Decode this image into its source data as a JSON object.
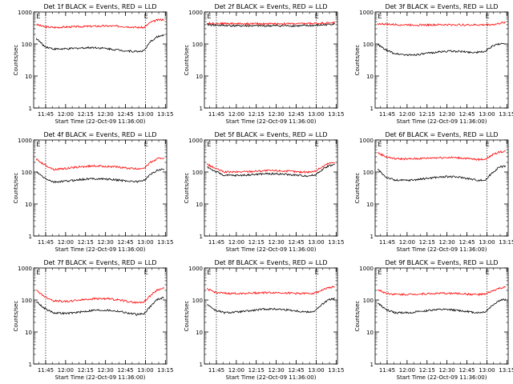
{
  "chart_data": [
    {
      "type": "line",
      "title": "Det 1f BLACK = Events, RED = LLD",
      "ylabel": "Counts/sec",
      "xlabel": "Start Time (22-Oct-09 11:36:00)",
      "x_ticks": [
        "11:45",
        "12:00",
        "12:15",
        "12:30",
        "12:45",
        "13:00",
        "13:15"
      ],
      "x_range_minutes": [
        0,
        100
      ],
      "ylim": [
        1,
        1000
      ],
      "y_scale": "log",
      "y_ticks": [
        "1",
        "10",
        "100",
        "1000"
      ],
      "markers": [
        {
          "label": "E",
          "minute": 2
        },
        {
          "label": "E",
          "minute": 83
        }
      ],
      "dotted_lines_minutes": [
        9,
        84
      ],
      "series": [
        {
          "color": "#ff0000",
          "x": [
            2,
            8,
            15,
            25,
            35,
            45,
            55,
            65,
            72,
            78,
            83,
            88,
            93,
            98
          ],
          "values": [
            410,
            345,
            330,
            340,
            350,
            360,
            365,
            360,
            345,
            330,
            330,
            480,
            560,
            590
          ]
        },
        {
          "color": "#000000",
          "x": [
            2,
            8,
            15,
            25,
            35,
            45,
            55,
            65,
            72,
            78,
            83,
            88,
            93,
            98
          ],
          "values": [
            150,
            85,
            70,
            70,
            75,
            78,
            72,
            64,
            60,
            58,
            62,
            120,
            170,
            185
          ]
        }
      ]
    },
    {
      "type": "line",
      "title": "Det 2f BLACK = Events, RED = LLD",
      "ylabel": "Counts/sec",
      "xlabel": "Start Time (22-Oct-09 11:36:00)",
      "x_ticks": [
        "11:45",
        "12:00",
        "12:15",
        "12:30",
        "12:45",
        "13:00",
        "13:15"
      ],
      "x_range_minutes": [
        0,
        100
      ],
      "ylim": [
        1,
        1000
      ],
      "y_scale": "log",
      "y_ticks": [
        "1",
        "10",
        "100",
        "1000"
      ],
      "markers": [
        {
          "label": "E",
          "minute": 2
        },
        {
          "label": "E",
          "minute": 83
        }
      ],
      "dotted_lines_minutes": [
        9,
        84
      ],
      "series": [
        {
          "color": "#ff0000",
          "x": [
            2,
            10,
            20,
            30,
            40,
            50,
            60,
            70,
            80,
            90,
            98
          ],
          "values": [
            440,
            440,
            435,
            430,
            430,
            430,
            430,
            430,
            435,
            450,
            470
          ]
        },
        {
          "color": "#000000",
          "x": [
            2,
            10,
            20,
            30,
            40,
            50,
            60,
            70,
            80,
            90,
            98
          ],
          "values": [
            400,
            385,
            375,
            370,
            370,
            372,
            372,
            370,
            375,
            395,
            430
          ]
        }
      ]
    },
    {
      "type": "line",
      "title": "Det 3f BLACK = Events, RED = LLD",
      "ylabel": "Counts/sec",
      "xlabel": "Start Time (22-Oct-09 11:36:00)",
      "x_ticks": [
        "11:45",
        "12:00",
        "12:15",
        "12:30",
        "12:45",
        "13:00",
        "13:15"
      ],
      "x_range_minutes": [
        0,
        100
      ],
      "ylim": [
        1,
        1000
      ],
      "y_scale": "log",
      "y_ticks": [
        "1",
        "10",
        "100",
        "1000"
      ],
      "markers": [
        {
          "label": "E",
          "minute": 2
        },
        {
          "label": "E",
          "minute": 83
        }
      ],
      "dotted_lines_minutes": [
        9,
        84
      ],
      "series": [
        {
          "color": "#ff0000",
          "x": [
            2,
            10,
            20,
            30,
            40,
            50,
            60,
            70,
            80,
            90,
            98
          ],
          "values": [
            430,
            410,
            400,
            395,
            395,
            400,
            400,
            395,
            395,
            410,
            480
          ]
        },
        {
          "color": "#000000",
          "x": [
            2,
            8,
            15,
            25,
            35,
            45,
            55,
            65,
            72,
            78,
            83,
            88,
            93,
            98
          ],
          "values": [
            95,
            65,
            50,
            45,
            48,
            55,
            60,
            58,
            55,
            55,
            60,
            85,
            100,
            105
          ]
        }
      ]
    },
    {
      "type": "line",
      "title": "Det 4f BLACK = Events, RED = LLD",
      "ylabel": "Counts/sec",
      "xlabel": "Start Time (22-Oct-09 11:36:00)",
      "x_ticks": [
        "11:45",
        "12:00",
        "12:15",
        "12:30",
        "12:45",
        "13:00",
        "13:15"
      ],
      "x_range_minutes": [
        0,
        100
      ],
      "ylim": [
        1,
        1000
      ],
      "y_scale": "log",
      "y_ticks": [
        "1",
        "10",
        "100",
        "1000"
      ],
      "markers": [
        {
          "label": "E",
          "minute": 2
        },
        {
          "label": "E",
          "minute": 83
        }
      ],
      "dotted_lines_minutes": [
        9,
        84
      ],
      "series": [
        {
          "color": "#ff0000",
          "x": [
            2,
            8,
            15,
            25,
            35,
            45,
            55,
            65,
            72,
            78,
            83,
            88,
            93,
            98
          ],
          "values": [
            250,
            170,
            120,
            130,
            145,
            155,
            150,
            140,
            130,
            125,
            135,
            200,
            260,
            280
          ]
        },
        {
          "color": "#000000",
          "x": [
            2,
            8,
            15,
            25,
            35,
            45,
            55,
            65,
            72,
            78,
            83,
            88,
            93,
            98
          ],
          "values": [
            100,
            65,
            48,
            52,
            58,
            62,
            60,
            55,
            52,
            50,
            55,
            85,
            115,
            125
          ]
        }
      ]
    },
    {
      "type": "line",
      "title": "Det 5f BLACK = Events, RED = LLD",
      "ylabel": "Counts/sec",
      "xlabel": "Start Time (22-Oct-09 11:36:00)",
      "x_ticks": [
        "11:45",
        "12:00",
        "12:15",
        "12:30",
        "12:45",
        "13:00",
        "13:15"
      ],
      "x_range_minutes": [
        0,
        100
      ],
      "ylim": [
        1,
        1000
      ],
      "y_scale": "log",
      "y_ticks": [
        "1",
        "10",
        "100",
        "1000"
      ],
      "markers": [
        {
          "label": "E",
          "minute": 2
        },
        {
          "label": "E",
          "minute": 83
        }
      ],
      "dotted_lines_minutes": [
        9,
        84
      ],
      "series": [
        {
          "color": "#ff0000",
          "x": [
            2,
            8,
            15,
            25,
            35,
            45,
            55,
            65,
            72,
            78,
            83,
            88,
            93,
            98
          ],
          "values": [
            175,
            130,
            100,
            100,
            105,
            110,
            110,
            105,
            100,
            100,
            105,
            140,
            185,
            200
          ]
        },
        {
          "color": "#000000",
          "x": [
            2,
            8,
            15,
            25,
            35,
            45,
            55,
            65,
            72,
            78,
            83,
            88,
            93,
            98
          ],
          "values": [
            145,
            105,
            78,
            78,
            82,
            88,
            88,
            82,
            78,
            76,
            80,
            115,
            155,
            170
          ]
        }
      ]
    },
    {
      "type": "line",
      "title": "Det 6f BLACK = Events, RED = LLD",
      "ylabel": "Counts/sec",
      "xlabel": "Start Time (22-Oct-09 11:36:00)",
      "x_ticks": [
        "11:45",
        "12:00",
        "12:15",
        "12:30",
        "12:45",
        "13:00",
        "13:15"
      ],
      "x_range_minutes": [
        0,
        100
      ],
      "ylim": [
        1,
        1000
      ],
      "y_scale": "log",
      "y_ticks": [
        "1",
        "10",
        "100",
        "1000"
      ],
      "markers": [
        {
          "label": "E",
          "minute": 2
        },
        {
          "label": "E",
          "minute": 83
        }
      ],
      "dotted_lines_minutes": [
        9,
        84
      ],
      "series": [
        {
          "color": "#ff0000",
          "x": [
            2,
            8,
            15,
            25,
            35,
            45,
            55,
            65,
            72,
            78,
            83,
            88,
            93,
            98
          ],
          "values": [
            400,
            300,
            260,
            255,
            265,
            280,
            285,
            275,
            255,
            245,
            255,
            340,
            420,
            450
          ]
        },
        {
          "color": "#000000",
          "x": [
            2,
            8,
            15,
            25,
            35,
            45,
            55,
            65,
            72,
            78,
            83,
            88,
            93,
            98
          ],
          "values": [
            120,
            70,
            55,
            55,
            60,
            68,
            72,
            68,
            60,
            55,
            56,
            95,
            140,
            155
          ]
        }
      ]
    },
    {
      "type": "line",
      "title": "Det 7f BLACK = Events, RED = LLD",
      "ylabel": "Counts/sec",
      "xlabel": "Start Time (22-Oct-09 11:36:00)",
      "x_ticks": [
        "11:45",
        "12:00",
        "12:15",
        "12:30",
        "12:45",
        "13:00",
        "13:15"
      ],
      "x_range_minutes": [
        0,
        100
      ],
      "ylim": [
        1,
        1000
      ],
      "y_scale": "log",
      "y_ticks": [
        "1",
        "10",
        "100",
        "1000"
      ],
      "markers": [
        {
          "label": "E",
          "minute": 2
        },
        {
          "label": "E",
          "minute": 83
        }
      ],
      "dotted_lines_minutes": [
        9,
        84
      ],
      "series": [
        {
          "color": "#ff0000",
          "x": [
            2,
            8,
            15,
            25,
            35,
            45,
            55,
            65,
            72,
            78,
            83,
            88,
            93,
            98
          ],
          "values": [
            200,
            130,
            95,
            90,
            100,
            110,
            110,
            100,
            88,
            82,
            88,
            140,
            210,
            230
          ]
        },
        {
          "color": "#000000",
          "x": [
            2,
            8,
            15,
            25,
            35,
            45,
            55,
            65,
            72,
            78,
            83,
            88,
            93,
            98
          ],
          "values": [
            90,
            55,
            40,
            38,
            42,
            48,
            48,
            44,
            38,
            35,
            38,
            65,
            105,
            120
          ]
        }
      ]
    },
    {
      "type": "line",
      "title": "Det 8f BLACK = Events, RED = LLD",
      "ylabel": "Counts/sec",
      "xlabel": "Start Time (22-Oct-09 11:36:00)",
      "x_ticks": [
        "11:45",
        "12:00",
        "12:15",
        "12:30",
        "12:45",
        "13:00",
        "13:15"
      ],
      "x_range_minutes": [
        0,
        100
      ],
      "ylim": [
        1,
        1000
      ],
      "y_scale": "log",
      "y_ticks": [
        "1",
        "10",
        "100",
        "1000"
      ],
      "markers": [
        {
          "label": "E",
          "minute": 2
        },
        {
          "label": "E",
          "minute": 83
        }
      ],
      "dotted_lines_minutes": [
        9,
        84
      ],
      "series": [
        {
          "color": "#ff0000",
          "x": [
            2,
            8,
            15,
            25,
            35,
            45,
            55,
            65,
            72,
            78,
            83,
            88,
            93,
            98
          ],
          "values": [
            220,
            175,
            160,
            160,
            165,
            170,
            170,
            165,
            160,
            160,
            165,
            200,
            240,
            260
          ]
        },
        {
          "color": "#000000",
          "x": [
            2,
            8,
            15,
            25,
            35,
            45,
            55,
            65,
            72,
            78,
            83,
            88,
            93,
            98
          ],
          "values": [
            75,
            48,
            40,
            42,
            46,
            52,
            52,
            48,
            44,
            42,
            45,
            70,
            100,
            110
          ]
        }
      ]
    },
    {
      "type": "line",
      "title": "Det 9f BLACK = Events, RED = LLD",
      "ylabel": "Counts/sec",
      "xlabel": "Start Time (22-Oct-09 11:36:00)",
      "x_ticks": [
        "11:45",
        "12:00",
        "12:15",
        "12:30",
        "12:45",
        "13:00",
        "13:15"
      ],
      "x_range_minutes": [
        0,
        100
      ],
      "ylim": [
        1,
        1000
      ],
      "y_scale": "log",
      "y_ticks": [
        "1",
        "10",
        "100",
        "1000"
      ],
      "markers": [
        {
          "label": "E",
          "minute": 2
        },
        {
          "label": "E",
          "minute": 83
        }
      ],
      "dotted_lines_minutes": [
        9,
        84
      ],
      "series": [
        {
          "color": "#ff0000",
          "x": [
            2,
            8,
            15,
            25,
            35,
            45,
            55,
            65,
            72,
            78,
            83,
            88,
            93,
            98
          ],
          "values": [
            210,
            165,
            150,
            150,
            155,
            160,
            162,
            158,
            150,
            148,
            152,
            190,
            230,
            250
          ]
        },
        {
          "color": "#000000",
          "x": [
            2,
            8,
            15,
            25,
            35,
            45,
            55,
            65,
            72,
            78,
            83,
            88,
            93,
            98
          ],
          "values": [
            80,
            50,
            40,
            40,
            44,
            50,
            50,
            46,
            42,
            40,
            43,
            68,
            95,
            105
          ]
        }
      ]
    }
  ]
}
